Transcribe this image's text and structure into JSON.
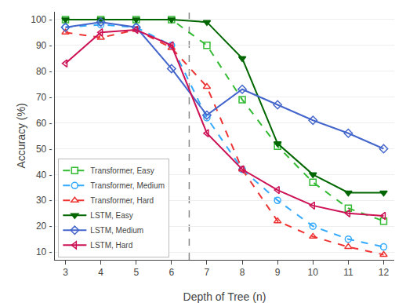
{
  "chart_data": {
    "type": "line",
    "title": "",
    "x_label": "Depth of Tree (n)",
    "y_label": "Accuracy (%)",
    "x": [
      3,
      4,
      5,
      6,
      7,
      8,
      9,
      10,
      11,
      12
    ],
    "xlim": [
      2.7,
      12.3
    ],
    "ylim": [
      7,
      103
    ],
    "xticks": [
      3,
      4,
      5,
      6,
      7,
      8,
      9,
      10,
      11,
      12
    ],
    "yticks": [
      {
        "value": 10,
        "label": "10 -"
      },
      {
        "value": 20,
        "label": "20 -"
      },
      {
        "value": 30,
        "label": "30 -"
      },
      {
        "value": 40,
        "label": "40 -"
      },
      {
        "value": 50,
        "label": "50 -"
      },
      {
        "value": 60,
        "label": "60 -"
      },
      {
        "value": 70,
        "label": "70 -"
      },
      {
        "value": 80,
        "label": "80 -"
      },
      {
        "value": 90,
        "label": "90 -"
      },
      {
        "value": 100,
        "label": "100 -"
      }
    ],
    "vline_x": 6.5,
    "grid": "y",
    "legend": "lower left",
    "series": [
      {
        "name": "Transformer, Easy",
        "color": "#33bb33",
        "line_style": "dash",
        "marker": "square-open",
        "values": [
          100,
          100,
          100,
          100,
          90,
          69,
          51,
          37,
          27,
          22
        ]
      },
      {
        "name": "Transformer, Medium",
        "color": "#33aaff",
        "line_style": "dash",
        "marker": "circle-open",
        "values": [
          97,
          98,
          97,
          90,
          62,
          42,
          30,
          20,
          15,
          12
        ]
      },
      {
        "name": "Transformer, Hard",
        "color": "#ee3333",
        "line_style": "dash",
        "marker": "triangle-up-open",
        "values": [
          95,
          93,
          96,
          89,
          74,
          42,
          22,
          16,
          12,
          9
        ]
      },
      {
        "name": "LSTM, Easy",
        "color": "#006600",
        "line_style": "solid",
        "marker": "triangle-down",
        "values": [
          100,
          100,
          100,
          100,
          99,
          85,
          52,
          40,
          33,
          33
        ]
      },
      {
        "name": "LSTM, Medium",
        "color": "#4466cc",
        "line_style": "solid",
        "marker": "diamond-open",
        "values": [
          97,
          99,
          97,
          81,
          63,
          73,
          67,
          61,
          56,
          50
        ]
      },
      {
        "name": "LSTM, Hard",
        "color": "#cc1155",
        "line_style": "solid",
        "marker": "triangle-left-open",
        "values": [
          83,
          95,
          96,
          90,
          56,
          42,
          34,
          28,
          25,
          24
        ]
      }
    ]
  }
}
